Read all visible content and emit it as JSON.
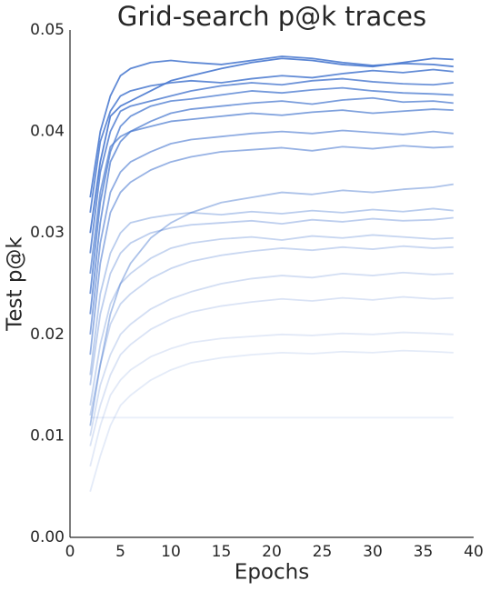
{
  "chart_data": {
    "type": "line",
    "title": "Grid-search p@k traces",
    "x_label": "Epochs",
    "y_label": "Test p@k",
    "color": "#4878cf",
    "xlim": [
      0,
      40
    ],
    "xticks": [
      0,
      5,
      10,
      15,
      20,
      25,
      30,
      35,
      40
    ],
    "ylim": [
      0,
      0.05
    ],
    "yticks": [
      {
        "value": 0,
        "label": "0.00"
      },
      {
        "value": 0.01,
        "label": "0.01"
      },
      {
        "value": 0.02,
        "label": "0.02"
      },
      {
        "value": 0.03,
        "label": "0.03"
      },
      {
        "value": 0.04,
        "label": "0.04"
      },
      {
        "value": 0.05,
        "label": "0.05"
      }
    ],
    "grid": false,
    "x": [
      2,
      3,
      4,
      5,
      6,
      8,
      10,
      12,
      15,
      18,
      21,
      24,
      27,
      30,
      33,
      36,
      38
    ],
    "series": [
      {
        "values": [
          0.0335,
          0.04,
          0.0435,
          0.0455,
          0.0462,
          0.0468,
          0.047,
          0.0468,
          0.0466,
          0.047,
          0.0474,
          0.0472,
          0.0468,
          0.0465,
          0.0467,
          0.0466,
          0.0464
        ]
      },
      {
        "values": [
          0.03,
          0.037,
          0.0415,
          0.0425,
          0.043,
          0.044,
          0.045,
          0.0455,
          0.0462,
          0.0468,
          0.0472,
          0.047,
          0.0466,
          0.0464,
          0.0468,
          0.0472,
          0.0471
        ]
      },
      {
        "values": [
          0.032,
          0.039,
          0.042,
          0.0435,
          0.044,
          0.0445,
          0.0448,
          0.045,
          0.0448,
          0.0452,
          0.0455,
          0.0453,
          0.0457,
          0.046,
          0.0458,
          0.0461,
          0.0459
        ]
      },
      {
        "values": [
          0.028,
          0.036,
          0.04,
          0.042,
          0.0425,
          0.043,
          0.0435,
          0.044,
          0.0445,
          0.0448,
          0.0446,
          0.045,
          0.0452,
          0.0449,
          0.0447,
          0.0446,
          0.0448
        ]
      },
      {
        "values": [
          0.024,
          0.033,
          0.038,
          0.0405,
          0.0415,
          0.0425,
          0.043,
          0.0432,
          0.0436,
          0.044,
          0.0438,
          0.0441,
          0.0443,
          0.044,
          0.0438,
          0.0437,
          0.0436
        ]
      },
      {
        "values": [
          0.022,
          0.031,
          0.037,
          0.039,
          0.04,
          0.041,
          0.0418,
          0.0422,
          0.0425,
          0.0428,
          0.043,
          0.0427,
          0.0431,
          0.0433,
          0.0429,
          0.043,
          0.0428
        ]
      },
      {
        "values": [
          0.026,
          0.034,
          0.0385,
          0.0395,
          0.04,
          0.0405,
          0.041,
          0.0412,
          0.0415,
          0.0418,
          0.0416,
          0.0419,
          0.0421,
          0.0418,
          0.042,
          0.0422,
          0.0421
        ]
      },
      {
        "values": [
          0.02,
          0.029,
          0.034,
          0.036,
          0.037,
          0.038,
          0.0388,
          0.0392,
          0.0395,
          0.0398,
          0.04,
          0.0398,
          0.0401,
          0.0399,
          0.0397,
          0.04,
          0.0398
        ]
      },
      {
        "values": [
          0.018,
          0.027,
          0.032,
          0.034,
          0.035,
          0.0362,
          0.037,
          0.0375,
          0.038,
          0.0382,
          0.0384,
          0.0381,
          0.0385,
          0.0383,
          0.0386,
          0.0384,
          0.0385
        ]
      },
      {
        "values": [
          0.011,
          0.017,
          0.022,
          0.025,
          0.027,
          0.0295,
          0.031,
          0.032,
          0.033,
          0.0335,
          0.034,
          0.0338,
          0.0342,
          0.034,
          0.0343,
          0.0345,
          0.0348
        ]
      },
      {
        "values": [
          0.016,
          0.024,
          0.028,
          0.03,
          0.031,
          0.0315,
          0.0318,
          0.032,
          0.0318,
          0.0321,
          0.0319,
          0.0322,
          0.032,
          0.0323,
          0.0321,
          0.0324,
          0.0322
        ]
      },
      {
        "values": [
          0.015,
          0.022,
          0.026,
          0.028,
          0.029,
          0.03,
          0.0305,
          0.0308,
          0.031,
          0.0312,
          0.0309,
          0.0313,
          0.0311,
          0.0314,
          0.0312,
          0.0313,
          0.0315
        ]
      },
      {
        "values": [
          0.013,
          0.019,
          0.023,
          0.025,
          0.026,
          0.0275,
          0.0285,
          0.029,
          0.0294,
          0.0296,
          0.0293,
          0.0297,
          0.0295,
          0.0298,
          0.0296,
          0.0294,
          0.0295
        ]
      },
      {
        "values": [
          0.012,
          0.017,
          0.021,
          0.023,
          0.024,
          0.0255,
          0.0265,
          0.0272,
          0.0278,
          0.0282,
          0.0285,
          0.0283,
          0.0286,
          0.0284,
          0.0287,
          0.0285,
          0.0286
        ]
      },
      {
        "values": [
          0.01,
          0.015,
          0.018,
          0.02,
          0.021,
          0.0225,
          0.0235,
          0.0242,
          0.025,
          0.0255,
          0.0258,
          0.0256,
          0.026,
          0.0258,
          0.0261,
          0.0259,
          0.026
        ]
      },
      {
        "values": [
          0.009,
          0.013,
          0.016,
          0.018,
          0.019,
          0.0205,
          0.0215,
          0.0222,
          0.0228,
          0.0232,
          0.0235,
          0.0233,
          0.0236,
          0.0234,
          0.0237,
          0.0235,
          0.0236
        ]
      },
      {
        "values": [
          0.007,
          0.011,
          0.014,
          0.0155,
          0.0165,
          0.0178,
          0.0186,
          0.0192,
          0.0196,
          0.0198,
          0.02,
          0.0199,
          0.0201,
          0.02,
          0.0202,
          0.0201,
          0.02
        ]
      },
      {
        "values": [
          0.0045,
          0.008,
          0.011,
          0.013,
          0.014,
          0.0155,
          0.0165,
          0.0172,
          0.0177,
          0.018,
          0.0182,
          0.0181,
          0.0183,
          0.0182,
          0.0184,
          0.0183,
          0.0182
        ]
      },
      {
        "values": [
          0.0118,
          0.0118,
          0.0118,
          0.0118,
          0.0118,
          0.0118,
          0.0118,
          0.0118,
          0.0118,
          0.0118,
          0.0118,
          0.0118,
          0.0118,
          0.0118,
          0.0118,
          0.0118,
          0.0118
        ]
      }
    ]
  }
}
